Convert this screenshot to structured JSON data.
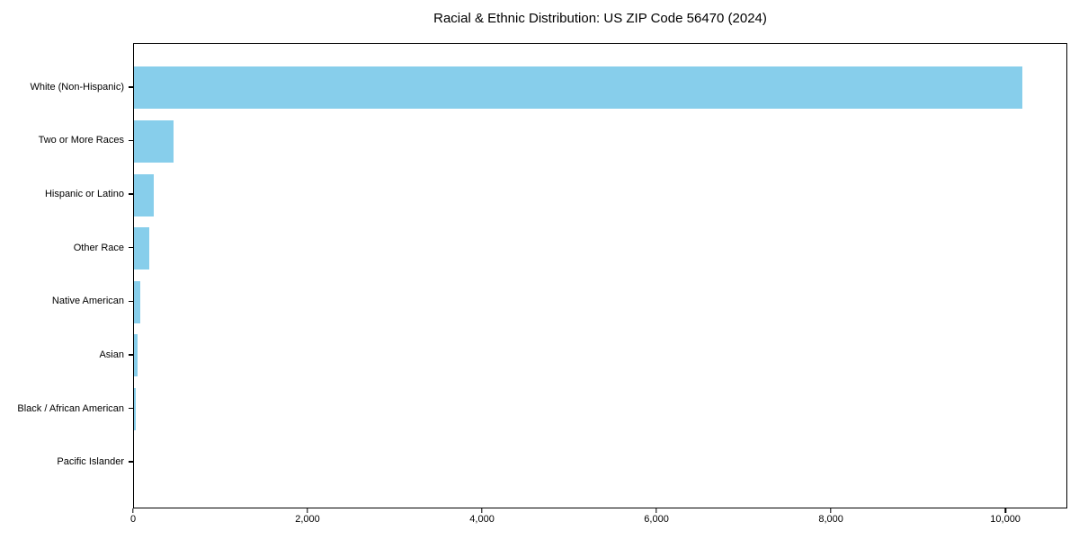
{
  "chart_data": {
    "type": "bar",
    "orientation": "horizontal",
    "title": "Racial & Ethnic Distribution: US ZIP Code 56470 (2024)",
    "categories": [
      "White (Non-Hispanic)",
      "Two or More Races",
      "Hispanic or Latino",
      "Other Race",
      "Native American",
      "Asian",
      "Black / African American",
      "Pacific Islander"
    ],
    "values": [
      10200,
      450,
      225,
      175,
      72,
      40,
      25,
      0
    ],
    "bar_color": "#87CEEB",
    "xlim": [
      0,
      10710
    ],
    "x_ticks": [
      0,
      2000,
      4000,
      6000,
      8000,
      10000
    ],
    "x_tick_labels": [
      "0",
      "2,000",
      "4,000",
      "6,000",
      "8,000",
      "10,000"
    ],
    "xlabel": "",
    "ylabel": "",
    "grid": false,
    "legend": null
  }
}
